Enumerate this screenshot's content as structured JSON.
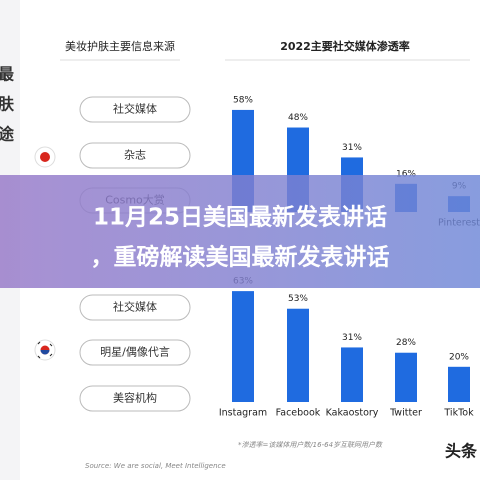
{
  "side_text": [
    "最",
    "肤",
    "途"
  ],
  "left_header": "美妆护肤主要信息来源",
  "right_header": "2022主要社交媒体渗透率",
  "groups": [
    {
      "pills": [
        "社交媒体",
        "杂志",
        "Cosmo大赏"
      ]
    },
    {
      "pills": [
        "社交媒体",
        "明星/偶像代言",
        "美容机构"
      ]
    }
  ],
  "chart_data": [
    {
      "type": "bar",
      "categories": [
        null,
        null,
        null,
        null,
        "Pinterest"
      ],
      "values": [
        58,
        48,
        31,
        16,
        9
      ],
      "value_labels": [
        "58%",
        "48%",
        "31%",
        "16%",
        "9%"
      ],
      "color": "#1f6be0"
    },
    {
      "type": "bar",
      "categories": [
        "Instagram",
        "Facebook",
        "Kakaostory",
        "Twitter",
        "TikTok"
      ],
      "values": [
        63,
        53,
        31,
        28,
        20
      ],
      "value_labels": [
        "63%",
        "53%",
        "31%",
        "28%",
        "20%"
      ],
      "color": "#1f6be0"
    }
  ],
  "footnote": "*渗透率=该媒体用户数/16-64岁互联网用户数",
  "source": "Source: We are social, Meet Intelligence",
  "watermark": "头条",
  "banner": [
    "11月25日美国最新发表讲话",
    "，重磅解读美国最新发表讲话"
  ]
}
